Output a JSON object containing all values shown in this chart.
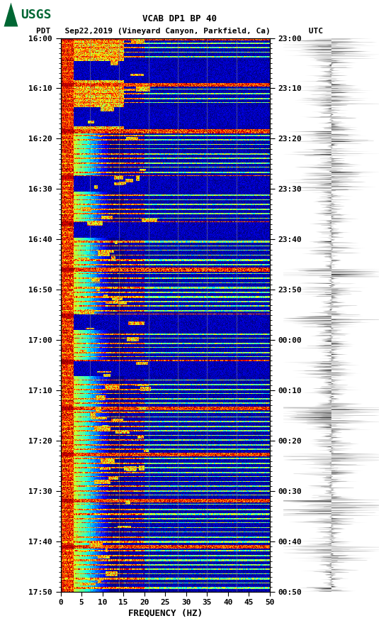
{
  "title_line1": "VCAB DP1 BP 40",
  "title_line2": "PDT   Sep22,2019 (Vineyard Canyon, Parkfield, Ca)        UTC",
  "left_yticks": [
    "16:00",
    "16:10",
    "16:20",
    "16:30",
    "16:40",
    "16:50",
    "17:00",
    "17:10",
    "17:20",
    "17:30",
    "17:40",
    "17:50"
  ],
  "right_yticks": [
    "23:00",
    "23:10",
    "23:20",
    "23:30",
    "23:40",
    "23:50",
    "00:00",
    "00:10",
    "00:20",
    "00:30",
    "00:40",
    "00:50"
  ],
  "xticks": [
    0,
    5,
    10,
    15,
    20,
    25,
    30,
    35,
    40,
    45,
    50
  ],
  "xlabel": "FREQUENCY (HZ)",
  "xmin": 0,
  "xmax": 50,
  "n_time_rows": 720,
  "n_freq_cols": 500,
  "background_color": "#ffffff",
  "spectrogram_cmap": "jet",
  "usgs_green": "#006633",
  "logo_text": "USGS",
  "vline_color": "#888888",
  "vline_positions": [
    7,
    14,
    21,
    28,
    35,
    42
  ],
  "figsize": [
    5.52,
    8.92
  ],
  "dpi": 100
}
